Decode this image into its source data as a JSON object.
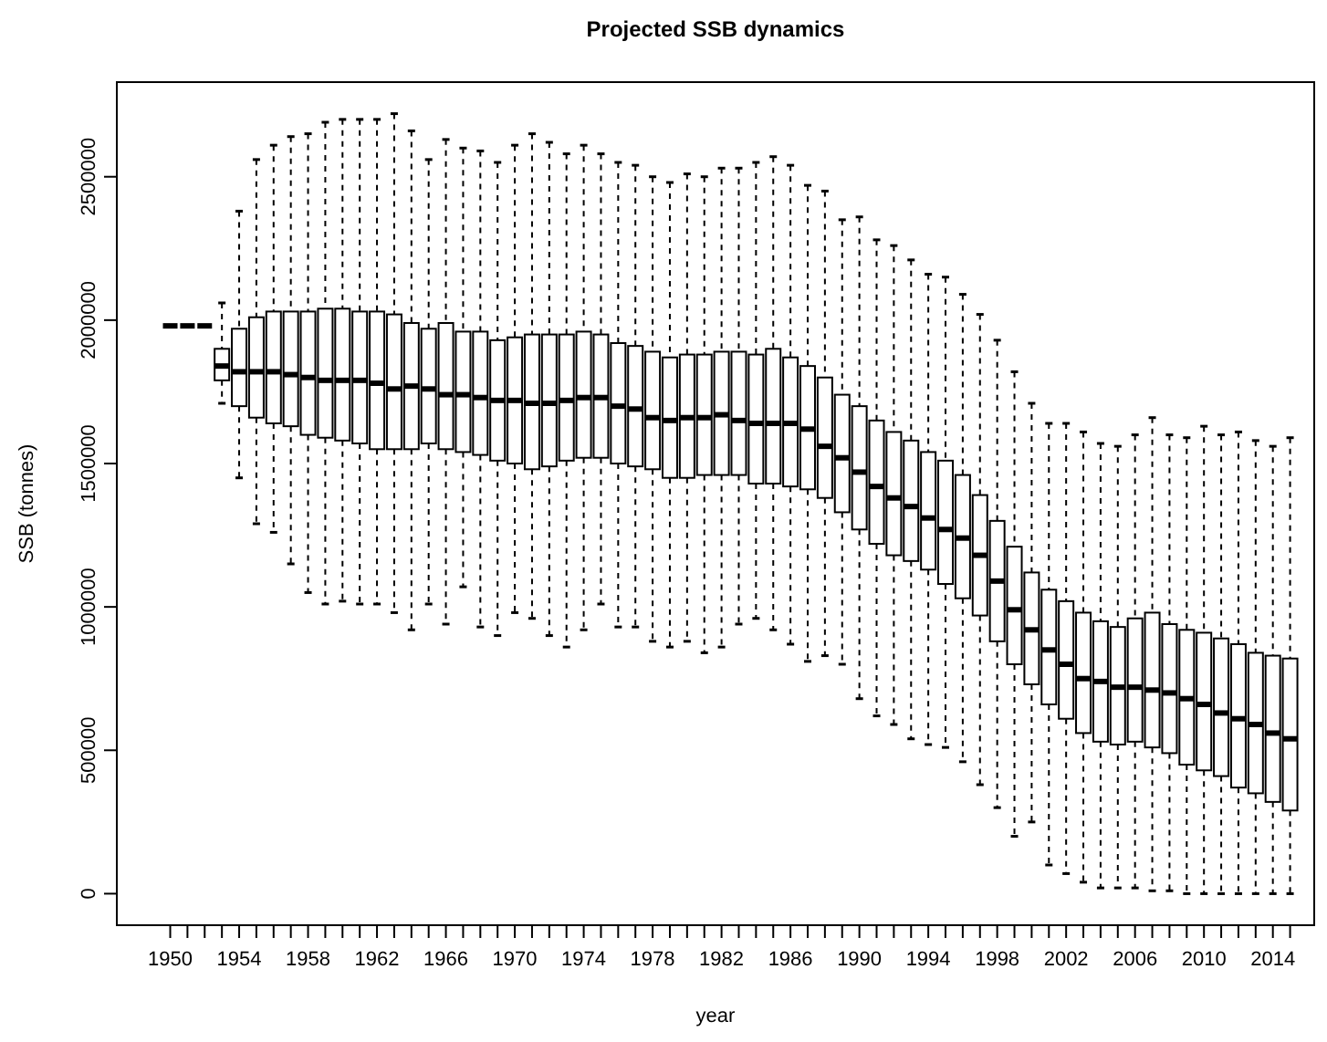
{
  "chart_data": {
    "type": "box",
    "title": "Projected SSB dynamics",
    "xlabel": "year",
    "ylabel": "SSB (tonnes)",
    "categories": [
      "1950",
      null,
      null,
      null,
      "1954",
      null,
      null,
      null,
      "1958",
      null,
      null,
      null,
      "1962",
      null,
      null,
      null,
      "1966",
      null,
      null,
      null,
      "1970",
      null,
      null,
      null,
      "1974",
      null,
      null,
      null,
      "1978",
      null,
      null,
      null,
      "1982",
      null,
      null,
      null,
      "1986",
      null,
      null,
      null,
      "1990",
      null,
      null,
      null,
      "1994",
      null,
      null,
      null,
      "1998",
      null,
      null,
      null,
      "2002",
      null,
      null,
      null,
      "2006",
      null,
      null,
      null,
      "2010",
      null,
      null,
      null,
      "2014",
      null
    ],
    "ylim": [
      -110000,
      2830000
    ],
    "yticks": [
      0,
      500000,
      1000000,
      1500000,
      2000000,
      2500000
    ],
    "boxes": [
      {
        "low": 1980000,
        "q1": 1980000,
        "median": 1980000,
        "q3": 1980000,
        "high": 1980000
      },
      {
        "low": 1980000,
        "q1": 1980000,
        "median": 1980000,
        "q3": 1980000,
        "high": 1980000
      },
      {
        "low": 1980000,
        "q1": 1980000,
        "median": 1980000,
        "q3": 1980000,
        "high": 1980000
      },
      {
        "low": 1710000,
        "q1": 1790000,
        "median": 1840000,
        "q3": 1900000,
        "high": 2060000
      },
      {
        "low": 1450000,
        "q1": 1700000,
        "median": 1820000,
        "q3": 1970000,
        "high": 2380000
      },
      {
        "low": 1290000,
        "q1": 1660000,
        "median": 1820000,
        "q3": 2010000,
        "high": 2560000
      },
      {
        "low": 1260000,
        "q1": 1640000,
        "median": 1820000,
        "q3": 2030000,
        "high": 2610000
      },
      {
        "low": 1150000,
        "q1": 1630000,
        "median": 1810000,
        "q3": 2030000,
        "high": 2640000
      },
      {
        "low": 1050000,
        "q1": 1600000,
        "median": 1800000,
        "q3": 2030000,
        "high": 2650000
      },
      {
        "low": 1010000,
        "q1": 1590000,
        "median": 1790000,
        "q3": 2040000,
        "high": 2690000
      },
      {
        "low": 1020000,
        "q1": 1580000,
        "median": 1790000,
        "q3": 2040000,
        "high": 2700000
      },
      {
        "low": 1010000,
        "q1": 1570000,
        "median": 1790000,
        "q3": 2030000,
        "high": 2700000
      },
      {
        "low": 1010000,
        "q1": 1550000,
        "median": 1780000,
        "q3": 2030000,
        "high": 2700000
      },
      {
        "low": 980000,
        "q1": 1550000,
        "median": 1760000,
        "q3": 2020000,
        "high": 2720000
      },
      {
        "low": 920000,
        "q1": 1550000,
        "median": 1770000,
        "q3": 1990000,
        "high": 2660000
      },
      {
        "low": 1010000,
        "q1": 1570000,
        "median": 1760000,
        "q3": 1970000,
        "high": 2560000
      },
      {
        "low": 940000,
        "q1": 1550000,
        "median": 1740000,
        "q3": 1990000,
        "high": 2630000
      },
      {
        "low": 1070000,
        "q1": 1540000,
        "median": 1740000,
        "q3": 1960000,
        "high": 2600000
      },
      {
        "low": 930000,
        "q1": 1530000,
        "median": 1730000,
        "q3": 1960000,
        "high": 2590000
      },
      {
        "low": 900000,
        "q1": 1510000,
        "median": 1720000,
        "q3": 1930000,
        "high": 2550000
      },
      {
        "low": 980000,
        "q1": 1500000,
        "median": 1720000,
        "q3": 1940000,
        "high": 2610000
      },
      {
        "low": 960000,
        "q1": 1480000,
        "median": 1710000,
        "q3": 1950000,
        "high": 2650000
      },
      {
        "low": 900000,
        "q1": 1490000,
        "median": 1710000,
        "q3": 1950000,
        "high": 2620000
      },
      {
        "low": 860000,
        "q1": 1510000,
        "median": 1720000,
        "q3": 1950000,
        "high": 2580000
      },
      {
        "low": 920000,
        "q1": 1520000,
        "median": 1730000,
        "q3": 1960000,
        "high": 2610000
      },
      {
        "low": 1010000,
        "q1": 1520000,
        "median": 1730000,
        "q3": 1950000,
        "high": 2580000
      },
      {
        "low": 930000,
        "q1": 1500000,
        "median": 1700000,
        "q3": 1920000,
        "high": 2550000
      },
      {
        "low": 930000,
        "q1": 1490000,
        "median": 1690000,
        "q3": 1910000,
        "high": 2540000
      },
      {
        "low": 880000,
        "q1": 1480000,
        "median": 1660000,
        "q3": 1890000,
        "high": 2500000
      },
      {
        "low": 860000,
        "q1": 1450000,
        "median": 1650000,
        "q3": 1870000,
        "high": 2480000
      },
      {
        "low": 880000,
        "q1": 1450000,
        "median": 1660000,
        "q3": 1880000,
        "high": 2510000
      },
      {
        "low": 840000,
        "q1": 1460000,
        "median": 1660000,
        "q3": 1880000,
        "high": 2500000
      },
      {
        "low": 860000,
        "q1": 1460000,
        "median": 1670000,
        "q3": 1890000,
        "high": 2530000
      },
      {
        "low": 940000,
        "q1": 1460000,
        "median": 1650000,
        "q3": 1890000,
        "high": 2530000
      },
      {
        "low": 960000,
        "q1": 1430000,
        "median": 1640000,
        "q3": 1880000,
        "high": 2550000
      },
      {
        "low": 920000,
        "q1": 1430000,
        "median": 1640000,
        "q3": 1900000,
        "high": 2570000
      },
      {
        "low": 870000,
        "q1": 1420000,
        "median": 1640000,
        "q3": 1870000,
        "high": 2540000
      },
      {
        "low": 810000,
        "q1": 1410000,
        "median": 1620000,
        "q3": 1840000,
        "high": 2470000
      },
      {
        "low": 830000,
        "q1": 1380000,
        "median": 1560000,
        "q3": 1800000,
        "high": 2450000
      },
      {
        "low": 800000,
        "q1": 1330000,
        "median": 1520000,
        "q3": 1740000,
        "high": 2350000
      },
      {
        "low": 680000,
        "q1": 1270000,
        "median": 1470000,
        "q3": 1700000,
        "high": 2360000
      },
      {
        "low": 620000,
        "q1": 1220000,
        "median": 1420000,
        "q3": 1650000,
        "high": 2280000
      },
      {
        "low": 590000,
        "q1": 1180000,
        "median": 1380000,
        "q3": 1610000,
        "high": 2260000
      },
      {
        "low": 540000,
        "q1": 1160000,
        "median": 1350000,
        "q3": 1580000,
        "high": 2210000
      },
      {
        "low": 520000,
        "q1": 1130000,
        "median": 1310000,
        "q3": 1540000,
        "high": 2160000
      },
      {
        "low": 510000,
        "q1": 1080000,
        "median": 1270000,
        "q3": 1510000,
        "high": 2150000
      },
      {
        "low": 460000,
        "q1": 1030000,
        "median": 1240000,
        "q3": 1460000,
        "high": 2090000
      },
      {
        "low": 380000,
        "q1": 970000,
        "median": 1180000,
        "q3": 1390000,
        "high": 2020000
      },
      {
        "low": 300000,
        "q1": 880000,
        "median": 1090000,
        "q3": 1300000,
        "high": 1930000
      },
      {
        "low": 200000,
        "q1": 800000,
        "median": 990000,
        "q3": 1210000,
        "high": 1820000
      },
      {
        "low": 250000,
        "q1": 730000,
        "median": 920000,
        "q3": 1120000,
        "high": 1710000
      },
      {
        "low": 100000,
        "q1": 660000,
        "median": 850000,
        "q3": 1060000,
        "high": 1640000
      },
      {
        "low": 70000,
        "q1": 610000,
        "median": 800000,
        "q3": 1020000,
        "high": 1640000
      },
      {
        "low": 40000,
        "q1": 560000,
        "median": 750000,
        "q3": 980000,
        "high": 1610000
      },
      {
        "low": 20000,
        "q1": 530000,
        "median": 740000,
        "q3": 950000,
        "high": 1570000
      },
      {
        "low": 20000,
        "q1": 520000,
        "median": 720000,
        "q3": 930000,
        "high": 1560000
      },
      {
        "low": 20000,
        "q1": 530000,
        "median": 720000,
        "q3": 960000,
        "high": 1600000
      },
      {
        "low": 10000,
        "q1": 510000,
        "median": 710000,
        "q3": 980000,
        "high": 1660000
      },
      {
        "low": 10000,
        "q1": 490000,
        "median": 700000,
        "q3": 940000,
        "high": 1600000
      },
      {
        "low": 0,
        "q1": 450000,
        "median": 680000,
        "q3": 920000,
        "high": 1590000
      },
      {
        "low": 0,
        "q1": 430000,
        "median": 660000,
        "q3": 910000,
        "high": 1630000
      },
      {
        "low": 0,
        "q1": 410000,
        "median": 630000,
        "q3": 890000,
        "high": 1600000
      },
      {
        "low": 0,
        "q1": 370000,
        "median": 610000,
        "q3": 870000,
        "high": 1610000
      },
      {
        "low": 0,
        "q1": 350000,
        "median": 590000,
        "q3": 840000,
        "high": 1580000
      },
      {
        "low": 0,
        "q1": 320000,
        "median": 560000,
        "q3": 830000,
        "high": 1560000
      },
      {
        "low": 0,
        "q1": 290000,
        "median": 540000,
        "q3": 820000,
        "high": 1590000
      }
    ]
  }
}
